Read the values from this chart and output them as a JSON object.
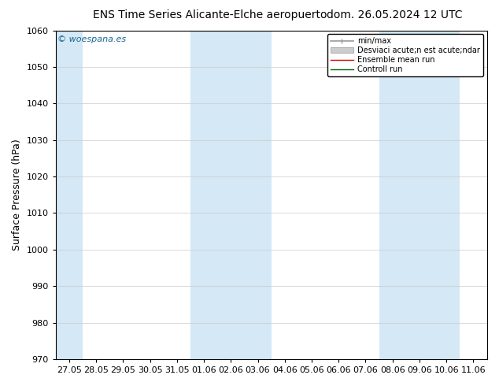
{
  "title_left": "ENS Time Series Alicante-Elche aeropuerto",
  "title_right": "dom. 26.05.2024 12 UTC",
  "ylabel": "Surface Pressure (hPa)",
  "ylim": [
    970,
    1060
  ],
  "yticks": [
    970,
    980,
    990,
    1000,
    1010,
    1020,
    1030,
    1040,
    1050,
    1060
  ],
  "xtick_labels": [
    "27.05",
    "28.05",
    "29.05",
    "30.05",
    "31.05",
    "01.06",
    "02.06",
    "03.06",
    "04.06",
    "05.06",
    "06.06",
    "07.06",
    "08.06",
    "09.06",
    "10.06",
    "11.06"
  ],
  "bg_color": "#ffffff",
  "plot_bg_color": "#ffffff",
  "band_color": "#d4e8f5",
  "legend_label_minmax": "min/max",
  "legend_label_std": "Desviaci acute;n est acute;ndar",
  "legend_label_ensemble": "Ensemble mean run",
  "legend_label_control": "Controll run",
  "watermark": "© woespana.es",
  "watermark_color": "#1a6699",
  "title_fontsize": 10,
  "axis_label_fontsize": 9,
  "tick_fontsize": 8,
  "legend_fontsize": 7
}
